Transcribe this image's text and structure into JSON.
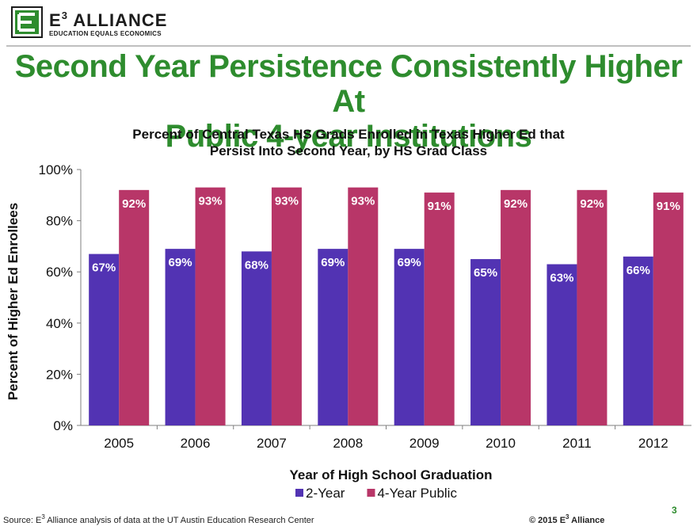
{
  "logo": {
    "name_prefix": "E",
    "name_sup": "3",
    "name_suffix": " ALLIANCE",
    "tagline": "EDUCATION EQUALS ECONOMICS"
  },
  "slide_title_line1": "Second Year Persistence Consistently Higher At",
  "slide_title_line2": "Public 4-year Institutions",
  "footer": {
    "source_prefix": "Source: E",
    "source_sup": "3",
    "source_suffix": " Alliance analysis of data at the UT Austin Education Research Center",
    "copyright_prefix": "© 2015 E",
    "copyright_sup": "3",
    "copyright_suffix": " Alliance",
    "page_number": "3"
  },
  "colors": {
    "title_green": "#2e8c2e",
    "two_year": "#5233b3",
    "four_year": "#b83668"
  },
  "chart_data": {
    "type": "bar",
    "title": "Percent of Central Texas HS Grads Enrolled in Texas Higher Ed that Persist Into Second Year, by HS Grad Class",
    "title_lines": [
      "Percent of Central Texas HS Grads Enrolled in Texas Higher Ed that",
      "Persist Into Second Year, by HS Grad Class"
    ],
    "xlabel": "Year of High School Graduation",
    "ylabel": "Percent of Higher Ed Enrollees",
    "ylim": [
      0,
      100
    ],
    "yticks": [
      "0%",
      "20%",
      "40%",
      "60%",
      "80%",
      "100%"
    ],
    "ytick_values": [
      0,
      20,
      40,
      60,
      80,
      100
    ],
    "grid": false,
    "legend_position": "bottom",
    "categories": [
      "2005",
      "2006",
      "2007",
      "2008",
      "2009",
      "2010",
      "2011",
      "2012"
    ],
    "series": [
      {
        "name": "2-Year",
        "color": "#5233b3",
        "values": [
          67,
          69,
          68,
          69,
          69,
          65,
          63,
          66
        ],
        "labels": [
          "67%",
          "69%",
          "68%",
          "69%",
          "69%",
          "65%",
          "63%",
          "66%"
        ]
      },
      {
        "name": "4-Year Public",
        "color": "#b83668",
        "values": [
          92,
          93,
          93,
          93,
          91,
          92,
          92,
          91
        ],
        "labels": [
          "92%",
          "93%",
          "93%",
          "93%",
          "91%",
          "92%",
          "92%",
          "91%"
        ]
      }
    ]
  }
}
